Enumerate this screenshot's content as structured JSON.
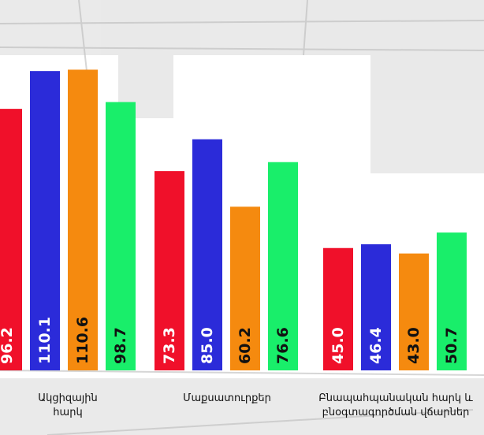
{
  "chart_data": {
    "type": "bar",
    "title": "",
    "xlabel": "",
    "ylabel": "",
    "ylim": [
      0,
      120
    ],
    "grid": false,
    "legend": "none",
    "categories": [
      "Ակցիզային\nհարկ",
      "Մաքսատուրքեր",
      "Բնապահպանական հարկ և\nբնօգտագործման վճարներ"
    ],
    "series": [
      {
        "color": "#f0102a",
        "text_color": "#ffffff",
        "values": [
          96.2,
          73.3,
          45.0
        ]
      },
      {
        "color": "#2b2bd9",
        "text_color": "#ffffff",
        "values": [
          110.1,
          85.0,
          46.4
        ]
      },
      {
        "color": "#f58a0f",
        "text_color": "#111111",
        "values": [
          110.6,
          60.2,
          43.0
        ]
      },
      {
        "color": "#19ee6a",
        "text_color": "#111111",
        "values": [
          98.7,
          76.6,
          50.7
        ]
      }
    ],
    "value_labels": [
      [
        "96.2",
        "73.3",
        "45.0"
      ],
      [
        "110.1",
        "85.0",
        "46.4"
      ],
      [
        "110.6",
        "60.2",
        "43.0"
      ],
      [
        "98.7",
        "76.6",
        "50.7"
      ]
    ]
  },
  "background_color": "#ffffff"
}
